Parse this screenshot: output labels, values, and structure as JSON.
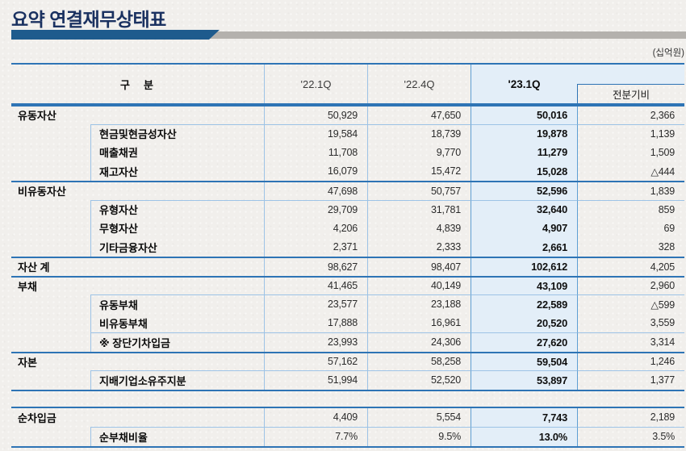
{
  "page": {
    "title": "요약 연결재무상태표",
    "unit_label": "(십억원)"
  },
  "colors": {
    "accent_navy": "#1a3160",
    "underline_bar_blue": "#1e5b8d",
    "underline_bar_gray": "#b4b1ad",
    "table_border_thick": "#2e74b5",
    "table_border_thin": "#9dc3e6",
    "highlight_column_bg": "#e3eef8",
    "highlight_column_border": "#5e9fd4",
    "paper_background": "#f1efec"
  },
  "balance_table": {
    "header": {
      "category": "구　분",
      "col1": "'22.1Q",
      "col2": "'22.4Q",
      "col3": "'23.1Q",
      "col4": "전분기비"
    },
    "rows": [
      {
        "label": "유동자산",
        "type": "section",
        "values": [
          "50,929",
          "47,650",
          "50,016",
          "2,366"
        ]
      },
      {
        "label": "현금및현금성자산",
        "type": "sub",
        "rule": true,
        "values": [
          "19,584",
          "18,739",
          "19,878",
          "1,139"
        ]
      },
      {
        "label": "매출채권",
        "type": "sub",
        "values": [
          "11,708",
          "9,770",
          "11,279",
          "1,509"
        ]
      },
      {
        "label": "재고자산",
        "type": "sub",
        "values": [
          "16,079",
          "15,472",
          "15,028",
          "△444"
        ]
      },
      {
        "label": "비유동자산",
        "type": "section",
        "values": [
          "47,698",
          "50,757",
          "52,596",
          "1,839"
        ]
      },
      {
        "label": "유형자산",
        "type": "sub",
        "rule": true,
        "values": [
          "29,709",
          "31,781",
          "32,640",
          "859"
        ]
      },
      {
        "label": "무형자산",
        "type": "sub",
        "values": [
          "4,206",
          "4,839",
          "4,907",
          "69"
        ]
      },
      {
        "label": "기타금융자산",
        "type": "sub",
        "values": [
          "2,371",
          "2,333",
          "2,661",
          "328"
        ]
      },
      {
        "label": "자산 계",
        "type": "section",
        "values": [
          "98,627",
          "98,407",
          "102,612",
          "4,205"
        ]
      },
      {
        "label": "부채",
        "type": "section",
        "values": [
          "41,465",
          "40,149",
          "43,109",
          "2,960"
        ]
      },
      {
        "label": "유동부채",
        "type": "sub",
        "rule": true,
        "values": [
          "23,577",
          "23,188",
          "22,589",
          "△599"
        ]
      },
      {
        "label": "비유동부채",
        "type": "sub",
        "values": [
          "17,888",
          "16,961",
          "20,520",
          "3,559"
        ]
      },
      {
        "label": "※ 장단기차입금",
        "type": "sub",
        "rule": true,
        "values": [
          "23,993",
          "24,306",
          "27,620",
          "3,314"
        ]
      },
      {
        "label": "자본",
        "type": "section",
        "values": [
          "57,162",
          "58,258",
          "59,504",
          "1,246"
        ]
      },
      {
        "label": "지배기업소유주지분",
        "type": "sub",
        "rule": true,
        "values": [
          "51,994",
          "52,520",
          "53,897",
          "1,377"
        ]
      }
    ]
  },
  "debt_table": {
    "rows": [
      {
        "label": "순차입금",
        "type": "section",
        "values": [
          "4,409",
          "5,554",
          "7,743",
          "2,189"
        ]
      },
      {
        "label": "순부채비율",
        "type": "sub",
        "rule": true,
        "values": [
          "7.7%",
          "9.5%",
          "13.0%",
          "3.5%"
        ]
      }
    ]
  }
}
